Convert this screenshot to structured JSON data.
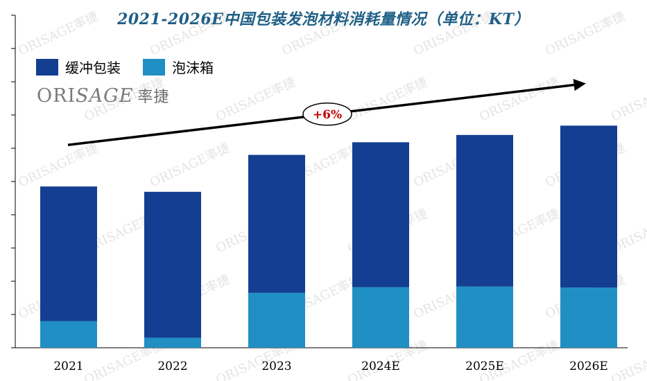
{
  "chart_data": {
    "type": "bar",
    "stacked": true,
    "title": "2021-2026E中国包装发泡材料消耗量情况（单位：KT）",
    "categories": [
      "2021",
      "2022",
      "2023",
      "2024E",
      "2025E",
      "2026E"
    ],
    "series": [
      {
        "name": "泡沫箱",
        "color": "#1f8fc4",
        "values": [
          8,
          3,
          16.5,
          18.2,
          18.4,
          18.1
        ]
      },
      {
        "name": "缓冲包装",
        "color": "#133e92",
        "values": [
          40.5,
          43.9,
          41.5,
          43.6,
          45.6,
          48.7
        ]
      }
    ],
    "legend_order": [
      "缓冲包装",
      "泡沫箱"
    ],
    "ylim": [
      0,
      100
    ],
    "annotation": {
      "text": "+6%",
      "type": "trend-arrow",
      "from": "2021",
      "to": "2026E"
    },
    "xlabel": "",
    "ylabel": ""
  },
  "brand": {
    "name": "ORI",
    "accent": "SAGE",
    "cn": "率捷"
  },
  "colors": {
    "title": "#1f5f86",
    "arrow": "#000000",
    "growth": "#c00000"
  }
}
